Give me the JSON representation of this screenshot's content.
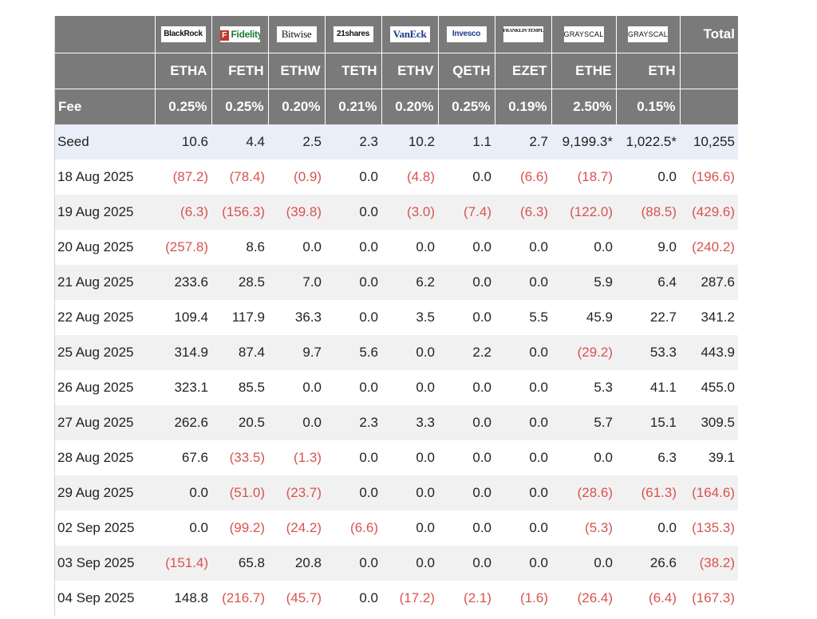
{
  "header": {
    "total_label": "Total",
    "issuers": [
      {
        "logo_text": "BlackRock",
        "ticker": "ETHA",
        "fee": "0.25%"
      },
      {
        "logo_text": "Fidelity",
        "ticker": "FETH",
        "fee": "0.25%"
      },
      {
        "logo_text": "Bitwise",
        "ticker": "ETHW",
        "fee": "0.20%"
      },
      {
        "logo_text": "21shares",
        "ticker": "TETH",
        "fee": "0.21%"
      },
      {
        "logo_text": "VanEck",
        "ticker": "ETHV",
        "fee": "0.20%"
      },
      {
        "logo_text": "Invesco",
        "ticker": "QETH",
        "fee": "0.25%"
      },
      {
        "logo_text": "FRANKLIN TEMPLETON",
        "ticker": "EZET",
        "fee": "0.19%"
      },
      {
        "logo_text": "GRAYSCALE",
        "ticker": "ETHE",
        "fee": "2.50%"
      },
      {
        "logo_text": "GRAYSCALE",
        "ticker": "ETH",
        "fee": "0.15%"
      }
    ],
    "fee_label": "Fee"
  },
  "rows": [
    {
      "date": "Seed",
      "values": [
        "10.6",
        "4.4",
        "2.5",
        "2.3",
        "10.2",
        "1.1",
        "2.7",
        "9,199.3*",
        "1,022.5*",
        "10,255"
      ]
    },
    {
      "date": "18 Aug 2025",
      "values": [
        "(87.2)",
        "(78.4)",
        "(0.9)",
        "0.0",
        "(4.8)",
        "0.0",
        "(6.6)",
        "(18.7)",
        "0.0",
        "(196.6)"
      ]
    },
    {
      "date": "19 Aug 2025",
      "values": [
        "(6.3)",
        "(156.3)",
        "(39.8)",
        "0.0",
        "(3.0)",
        "(7.4)",
        "(6.3)",
        "(122.0)",
        "(88.5)",
        "(429.6)"
      ]
    },
    {
      "date": "20 Aug 2025",
      "values": [
        "(257.8)",
        "8.6",
        "0.0",
        "0.0",
        "0.0",
        "0.0",
        "0.0",
        "0.0",
        "9.0",
        "(240.2)"
      ]
    },
    {
      "date": "21 Aug 2025",
      "values": [
        "233.6",
        "28.5",
        "7.0",
        "0.0",
        "6.2",
        "0.0",
        "0.0",
        "5.9",
        "6.4",
        "287.6"
      ]
    },
    {
      "date": "22 Aug 2025",
      "values": [
        "109.4",
        "117.9",
        "36.3",
        "0.0",
        "3.5",
        "0.0",
        "5.5",
        "45.9",
        "22.7",
        "341.2"
      ]
    },
    {
      "date": "25 Aug 2025",
      "values": [
        "314.9",
        "87.4",
        "9.7",
        "5.6",
        "0.0",
        "2.2",
        "0.0",
        "(29.2)",
        "53.3",
        "443.9"
      ]
    },
    {
      "date": "26 Aug 2025",
      "values": [
        "323.1",
        "85.5",
        "0.0",
        "0.0",
        "0.0",
        "0.0",
        "0.0",
        "5.3",
        "41.1",
        "455.0"
      ]
    },
    {
      "date": "27 Aug 2025",
      "values": [
        "262.6",
        "20.5",
        "0.0",
        "2.3",
        "3.3",
        "0.0",
        "0.0",
        "5.7",
        "15.1",
        "309.5"
      ]
    },
    {
      "date": "28 Aug 2025",
      "values": [
        "67.6",
        "(33.5)",
        "(1.3)",
        "0.0",
        "0.0",
        "0.0",
        "0.0",
        "0.0",
        "6.3",
        "39.1"
      ]
    },
    {
      "date": "29 Aug 2025",
      "values": [
        "0.0",
        "(51.0)",
        "(23.7)",
        "0.0",
        "0.0",
        "0.0",
        "0.0",
        "(28.6)",
        "(61.3)",
        "(164.6)"
      ]
    },
    {
      "date": "02 Sep 2025",
      "values": [
        "0.0",
        "(99.2)",
        "(24.2)",
        "(6.6)",
        "0.0",
        "0.0",
        "0.0",
        "(5.3)",
        "0.0",
        "(135.3)"
      ]
    },
    {
      "date": "03 Sep 2025",
      "values": [
        "(151.4)",
        "65.8",
        "20.8",
        "0.0",
        "0.0",
        "0.0",
        "0.0",
        "0.0",
        "26.6",
        "(38.2)"
      ]
    },
    {
      "date": "04 Sep 2025",
      "values": [
        "148.8",
        "(216.7)",
        "(45.7)",
        "0.0",
        "(17.2)",
        "(2.1)",
        "(1.6)",
        "(26.4)",
        "(6.4)",
        "(167.3)"
      ]
    }
  ],
  "colors": {
    "header_bg": "#7a7a7a",
    "negative": "#d9534f",
    "seed_bg": "#e9eef8",
    "stripe": "#f1f1f1"
  }
}
